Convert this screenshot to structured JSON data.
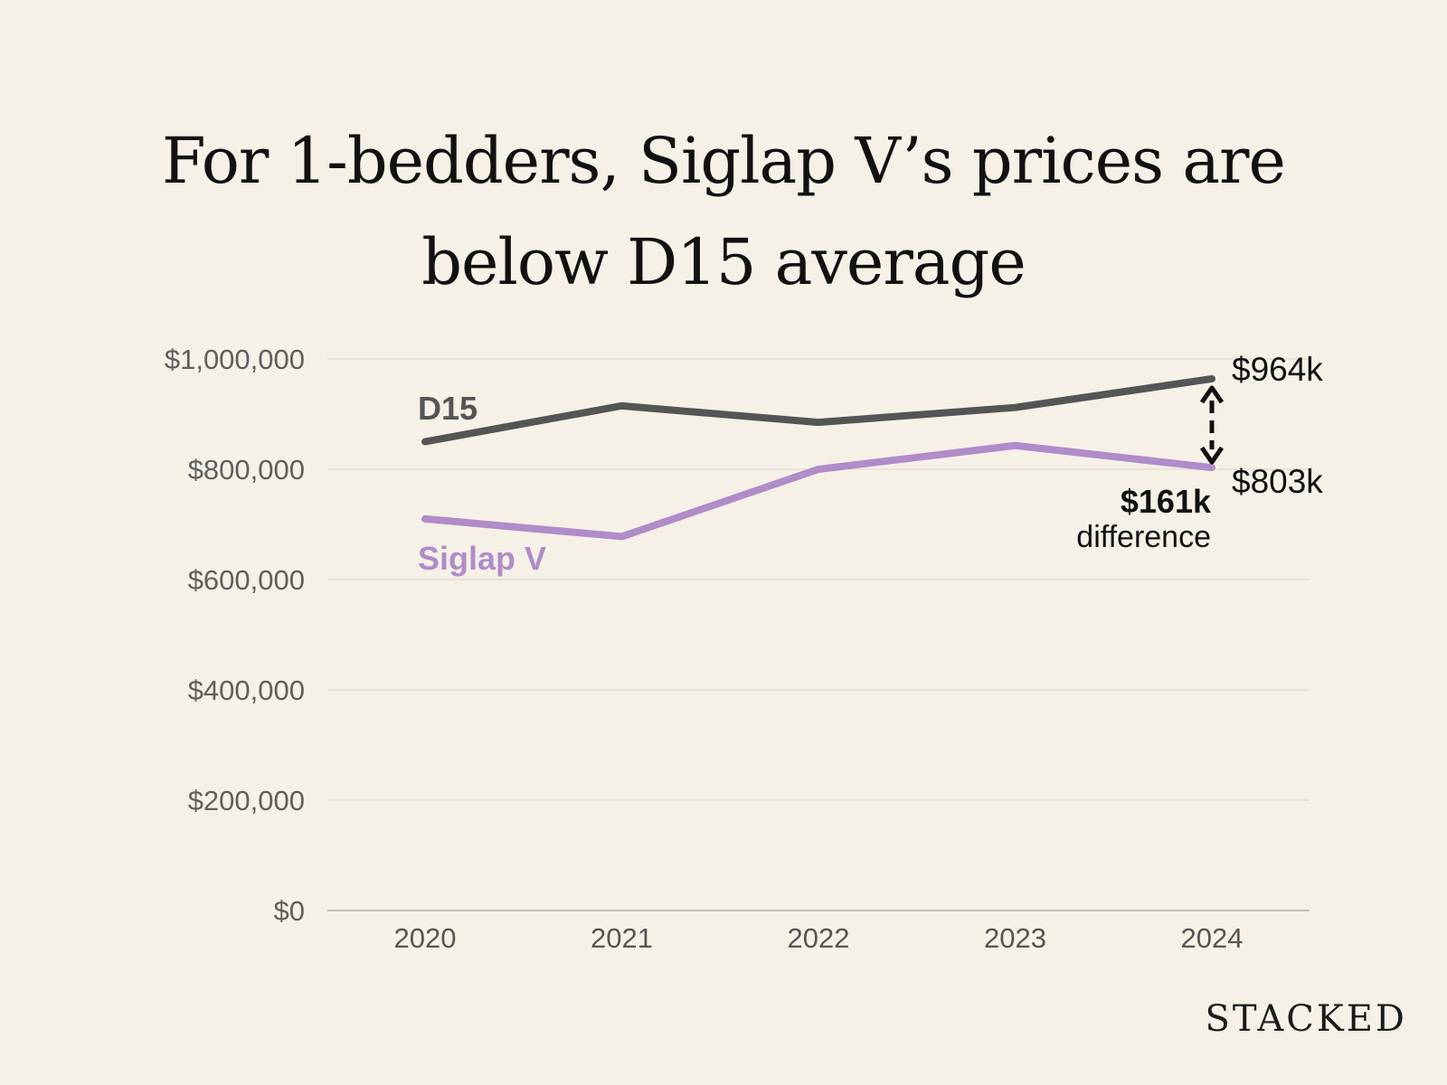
{
  "title": {
    "line1": "For 1-bedders, Siglap V’s prices are",
    "line2": "below D15 average"
  },
  "brand": "STACKED",
  "colors": {
    "background": "#f6f1e6",
    "d15": "#555555",
    "siglap": "#b08cc9",
    "grid": "#dcd7cc",
    "axis": "#b5b0a6"
  },
  "chart_data": {
    "type": "line",
    "x": [
      "2020",
      "2021",
      "2022",
      "2023",
      "2024"
    ],
    "series": [
      {
        "name": "D15",
        "color": "#555555",
        "values": [
          850000,
          915000,
          885000,
          912000,
          964000
        ]
      },
      {
        "name": "Siglap V",
        "color": "#b08cc9",
        "values": [
          710000,
          678000,
          800000,
          843000,
          803000
        ]
      }
    ],
    "yticks": [
      {
        "value": 0,
        "label": "$0"
      },
      {
        "value": 200000,
        "label": "$200,000"
      },
      {
        "value": 400000,
        "label": "$400,000"
      },
      {
        "value": 600000,
        "label": "$600,000"
      },
      {
        "value": 800000,
        "label": "$800,000"
      },
      {
        "value": 1000000,
        "label": "$1,000,000"
      }
    ],
    "ylim": [
      0,
      1000000
    ],
    "grid": true,
    "end_labels": [
      "$964k",
      "$803k"
    ],
    "annotation": {
      "amount": "$161k",
      "text": "difference"
    }
  }
}
